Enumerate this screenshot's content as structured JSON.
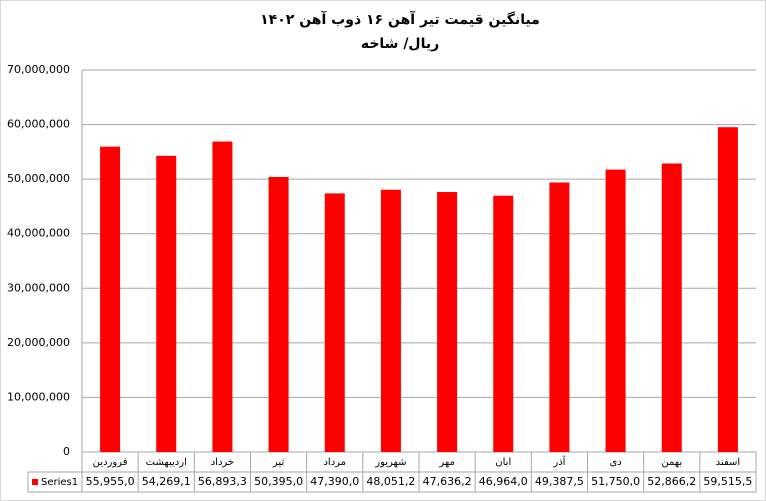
{
  "chart_data": {
    "type": "bar",
    "title": "میانگین قیمت تیر آهن ۱۶ ذوب آهن ۱۴۰۲",
    "subtitle": "ریال/ شاخه",
    "categories": [
      "فروردین",
      "اردیبهشت",
      "خرداد",
      "تیر",
      "مرداد",
      "شهریور",
      "مهر",
      "ابان",
      "آذر",
      "دی",
      "بهمن",
      "اسفند"
    ],
    "series": [
      {
        "name": "Series1",
        "color": "#ff0000",
        "values": [
          55955000,
          54269100,
          56893300,
          50395000,
          47390000,
          48051200,
          47636200,
          46964000,
          49387500,
          51750000,
          52866200,
          59515500
        ],
        "value_labels": [
          "55,955,0",
          "54,269,1",
          "56,893,3",
          "50,395,0",
          "47,390,0",
          "48,051,2",
          "47,636,2",
          "46,964,0",
          "49,387,5",
          "51,750,0",
          "52,866,2",
          "59,515,5"
        ]
      }
    ],
    "ylim": [
      0,
      70000000
    ],
    "yticks": [
      0,
      {
        "value": 10000000,
        "label": "10,000,000"
      },
      {
        "value": 20000000,
        "label": "20,000,000"
      },
      {
        "value": 30000000,
        "label": "30,000,000"
      },
      {
        "value": 40000000,
        "label": "40,000,000"
      },
      {
        "value": 50000000,
        "label": "50,000,000"
      },
      {
        "value": 60000000,
        "label": "60,000,000"
      },
      {
        "value": 70000000,
        "label": "70,000,000"
      }
    ],
    "grid": true
  }
}
